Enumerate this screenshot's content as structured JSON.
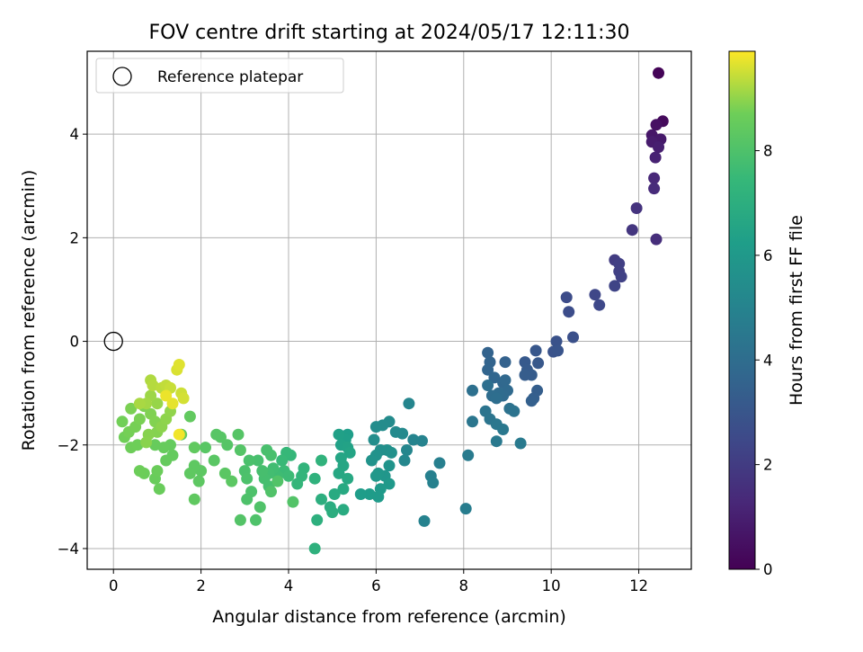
{
  "chart_data": {
    "type": "scatter",
    "title": "FOV centre drift starting at 2024/05/17 12:11:30",
    "xlabel": "Angular distance from reference (arcmin)",
    "ylabel": "Rotation from reference (arcmin)",
    "xlim": [
      -0.6,
      13.2
    ],
    "ylim": [
      -4.4,
      5.6
    ],
    "xticks": [
      0,
      2,
      4,
      6,
      8,
      10,
      12
    ],
    "yticks": [
      -4,
      -2,
      0,
      2,
      4
    ],
    "grid": true,
    "legend": {
      "position": "top-left",
      "entries": [
        "Reference platepar"
      ]
    },
    "reference_point": {
      "x": 0,
      "y": 0
    },
    "colorbar": {
      "label": "Hours from first FF file",
      "colormap": "viridis",
      "range": [
        0,
        9.9
      ],
      "ticks": [
        0,
        2,
        4,
        6,
        8
      ]
    },
    "series": [
      {
        "color_value": "hours",
        "points": [
          [
            12.45,
            5.18,
            0.1
          ],
          [
            12.55,
            4.25,
            0.3
          ],
          [
            12.4,
            4.18,
            0.5
          ],
          [
            12.3,
            3.98,
            0.7
          ],
          [
            12.5,
            3.9,
            0.8
          ],
          [
            12.3,
            3.85,
            0.9
          ],
          [
            12.45,
            3.75,
            1.0
          ],
          [
            12.38,
            3.55,
            1.1
          ],
          [
            12.35,
            3.15,
            1.3
          ],
          [
            12.35,
            2.95,
            1.4
          ],
          [
            12.4,
            1.97,
            1.5
          ],
          [
            11.95,
            2.57,
            1.7
          ],
          [
            11.85,
            2.15,
            1.8
          ],
          [
            11.45,
            1.57,
            2.0
          ],
          [
            11.55,
            1.5,
            2.1
          ],
          [
            11.55,
            1.35,
            2.15
          ],
          [
            11.6,
            1.25,
            2.2
          ],
          [
            11.45,
            1.07,
            2.3
          ],
          [
            11.0,
            0.9,
            2.4
          ],
          [
            11.1,
            0.7,
            2.45
          ],
          [
            10.35,
            0.85,
            2.6
          ],
          [
            10.4,
            0.57,
            2.65
          ],
          [
            10.5,
            0.08,
            2.75
          ],
          [
            10.12,
            0.0,
            2.85
          ],
          [
            10.05,
            -0.2,
            2.9
          ],
          [
            10.15,
            -0.18,
            2.95
          ],
          [
            9.65,
            -0.18,
            3.05
          ],
          [
            9.7,
            -0.42,
            3.1
          ],
          [
            9.4,
            -0.4,
            3.15
          ],
          [
            9.45,
            -0.55,
            3.2
          ],
          [
            9.55,
            -0.65,
            3.25
          ],
          [
            9.4,
            -0.65,
            3.3
          ],
          [
            9.68,
            -0.95,
            3.35
          ],
          [
            9.6,
            -1.1,
            3.4
          ],
          [
            9.55,
            -1.15,
            3.45
          ],
          [
            8.95,
            -0.4,
            3.5
          ],
          [
            8.55,
            -0.22,
            3.55
          ],
          [
            8.6,
            -0.4,
            3.6
          ],
          [
            8.55,
            -0.55,
            3.65
          ],
          [
            8.7,
            -0.7,
            3.7
          ],
          [
            8.9,
            -0.8,
            3.75
          ],
          [
            8.95,
            -0.75,
            3.8
          ],
          [
            9.0,
            -0.95,
            3.85
          ],
          [
            8.9,
            -1.05,
            3.9
          ],
          [
            8.8,
            -1.0,
            3.95
          ],
          [
            8.65,
            -1.05,
            4.0
          ],
          [
            8.75,
            -1.1,
            4.05
          ],
          [
            8.55,
            -0.85,
            4.1
          ],
          [
            8.2,
            -0.95,
            4.15
          ],
          [
            9.05,
            -1.3,
            4.2
          ],
          [
            9.15,
            -1.35,
            4.25
          ],
          [
            8.5,
            -1.35,
            4.3
          ],
          [
            8.6,
            -1.5,
            4.35
          ],
          [
            8.2,
            -1.55,
            4.4
          ],
          [
            8.75,
            -1.6,
            4.45
          ],
          [
            8.9,
            -1.7,
            4.5
          ],
          [
            8.75,
            -1.93,
            4.55
          ],
          [
            9.3,
            -1.97,
            4.6
          ],
          [
            8.1,
            -2.2,
            4.65
          ],
          [
            8.05,
            -3.23,
            4.7
          ],
          [
            7.45,
            -2.35,
            4.8
          ],
          [
            7.25,
            -2.6,
            4.85
          ],
          [
            7.3,
            -2.73,
            4.9
          ],
          [
            7.1,
            -3.47,
            4.95
          ],
          [
            7.05,
            -1.92,
            5.0
          ],
          [
            6.85,
            -1.9,
            5.05
          ],
          [
            6.75,
            -1.2,
            5.1
          ],
          [
            6.7,
            -2.1,
            5.15
          ],
          [
            6.65,
            -2.3,
            5.2
          ],
          [
            6.6,
            -1.78,
            5.25
          ],
          [
            6.45,
            -1.75,
            5.3
          ],
          [
            6.3,
            -1.55,
            5.35
          ],
          [
            6.15,
            -1.62,
            5.4
          ],
          [
            6.0,
            -1.65,
            5.45
          ],
          [
            5.95,
            -1.9,
            5.5
          ],
          [
            6.1,
            -2.1,
            5.55
          ],
          [
            6.25,
            -2.1,
            5.6
          ],
          [
            6.35,
            -2.15,
            5.65
          ],
          [
            6.0,
            -2.2,
            5.7
          ],
          [
            5.9,
            -2.3,
            5.75
          ],
          [
            6.3,
            -2.4,
            5.8
          ],
          [
            6.2,
            -2.6,
            5.85
          ],
          [
            6.05,
            -2.55,
            5.9
          ],
          [
            6.0,
            -2.6,
            5.95
          ],
          [
            6.3,
            -2.75,
            6.0
          ],
          [
            6.1,
            -2.85,
            6.05
          ],
          [
            6.05,
            -3.0,
            6.1
          ],
          [
            5.85,
            -2.95,
            6.15
          ],
          [
            5.65,
            -2.95,
            6.2
          ],
          [
            5.35,
            -1.8,
            6.25
          ],
          [
            5.3,
            -1.9,
            6.3
          ],
          [
            5.15,
            -1.8,
            6.35
          ],
          [
            5.2,
            -2.0,
            6.4
          ],
          [
            5.35,
            -2.05,
            6.45
          ],
          [
            5.4,
            -2.15,
            6.5
          ],
          [
            5.2,
            -2.25,
            6.55
          ],
          [
            5.25,
            -2.4,
            6.6
          ],
          [
            5.15,
            -2.55,
            6.65
          ],
          [
            5.35,
            -2.65,
            6.7
          ],
          [
            5.25,
            -2.85,
            6.75
          ],
          [
            5.05,
            -2.95,
            6.8
          ],
          [
            5.25,
            -3.25,
            6.85
          ],
          [
            4.95,
            -3.2,
            6.9
          ],
          [
            5.0,
            -3.3,
            6.95
          ],
          [
            4.75,
            -3.05,
            7.0
          ],
          [
            4.65,
            -3.45,
            7.05
          ],
          [
            4.6,
            -4.0,
            7.1
          ],
          [
            4.6,
            -2.65,
            7.15
          ],
          [
            4.75,
            -2.3,
            7.2
          ],
          [
            4.35,
            -2.45,
            7.25
          ],
          [
            4.3,
            -2.6,
            7.3
          ],
          [
            4.2,
            -2.75,
            7.35
          ],
          [
            4.05,
            -2.2,
            7.4
          ],
          [
            3.95,
            -2.15,
            7.45
          ],
          [
            3.85,
            -2.3,
            7.5
          ],
          [
            3.9,
            -2.5,
            7.55
          ],
          [
            4.0,
            -2.6,
            7.6
          ],
          [
            3.75,
            -2.6,
            7.65
          ],
          [
            3.65,
            -2.45,
            7.7
          ],
          [
            3.55,
            -2.55,
            7.75
          ],
          [
            3.55,
            -2.8,
            7.8
          ],
          [
            3.45,
            -2.65,
            7.82
          ],
          [
            3.4,
            -2.5,
            7.84
          ],
          [
            3.3,
            -2.3,
            7.86
          ],
          [
            3.5,
            -2.1,
            7.88
          ],
          [
            3.6,
            -2.2,
            7.9
          ],
          [
            3.1,
            -2.3,
            7.92
          ],
          [
            3.0,
            -2.5,
            7.94
          ],
          [
            3.05,
            -2.65,
            7.96
          ],
          [
            3.15,
            -2.9,
            7.98
          ],
          [
            3.05,
            -3.05,
            8.0
          ],
          [
            3.25,
            -3.45,
            8.02
          ],
          [
            3.35,
            -3.2,
            8.04
          ],
          [
            3.6,
            -2.9,
            8.06
          ],
          [
            3.75,
            -2.7,
            8.08
          ],
          [
            4.1,
            -3.1,
            8.1
          ],
          [
            2.9,
            -3.45,
            8.12
          ],
          [
            2.9,
            -2.1,
            8.14
          ],
          [
            2.85,
            -1.8,
            8.16
          ],
          [
            2.6,
            -2.0,
            8.18
          ],
          [
            2.45,
            -1.85,
            8.2
          ],
          [
            2.35,
            -1.8,
            8.22
          ],
          [
            2.1,
            -2.05,
            8.24
          ],
          [
            2.3,
            -2.3,
            8.26
          ],
          [
            2.55,
            -2.55,
            8.28
          ],
          [
            2.7,
            -2.7,
            8.3
          ],
          [
            2.0,
            -2.5,
            8.32
          ],
          [
            1.95,
            -2.7,
            8.34
          ],
          [
            1.85,
            -2.4,
            8.36
          ],
          [
            1.75,
            -2.55,
            8.38
          ],
          [
            1.85,
            -3.05,
            8.4
          ],
          [
            1.85,
            -2.05,
            8.42
          ],
          [
            1.75,
            -1.45,
            8.44
          ],
          [
            1.55,
            -1.8,
            8.46
          ],
          [
            1.35,
            -2.2,
            8.48
          ],
          [
            1.2,
            -2.3,
            8.5
          ],
          [
            1.3,
            -2.0,
            8.52
          ],
          [
            1.15,
            -2.05,
            8.54
          ],
          [
            0.95,
            -2.0,
            8.56
          ],
          [
            0.95,
            -2.65,
            8.58
          ],
          [
            1.05,
            -2.85,
            8.6
          ],
          [
            1.0,
            -2.5,
            8.62
          ],
          [
            0.7,
            -2.55,
            8.64
          ],
          [
            0.6,
            -2.5,
            8.66
          ],
          [
            0.4,
            -2.05,
            8.68
          ],
          [
            0.55,
            -2.0,
            8.7
          ],
          [
            0.25,
            -1.85,
            8.72
          ],
          [
            0.2,
            -1.55,
            8.74
          ],
          [
            0.35,
            -1.75,
            8.76
          ],
          [
            0.5,
            -1.65,
            8.78
          ],
          [
            0.6,
            -1.5,
            8.8
          ],
          [
            0.4,
            -1.3,
            8.82
          ],
          [
            0.7,
            -1.25,
            8.84
          ],
          [
            0.85,
            -1.4,
            8.86
          ],
          [
            0.95,
            -1.55,
            8.88
          ],
          [
            1.0,
            -1.75,
            8.9
          ],
          [
            0.8,
            -1.8,
            8.92
          ],
          [
            0.75,
            -1.95,
            8.94
          ],
          [
            1.1,
            -1.65,
            8.96
          ],
          [
            1.2,
            -1.5,
            8.98
          ],
          [
            1.3,
            -1.35,
            9.0
          ],
          [
            1.0,
            -1.2,
            9.05
          ],
          [
            0.85,
            -1.05,
            9.1
          ],
          [
            0.75,
            -1.2,
            9.15
          ],
          [
            0.6,
            -1.2,
            9.2
          ],
          [
            0.85,
            -0.75,
            9.25
          ],
          [
            0.9,
            -0.85,
            9.3
          ],
          [
            1.1,
            -0.9,
            9.35
          ],
          [
            1.2,
            -0.85,
            9.4
          ],
          [
            1.3,
            -0.9,
            9.45
          ],
          [
            1.55,
            -1.0,
            9.5
          ],
          [
            1.6,
            -1.1,
            9.55
          ],
          [
            1.45,
            -0.55,
            9.6
          ],
          [
            1.5,
            -0.45,
            9.65
          ],
          [
            1.35,
            -1.2,
            9.7
          ],
          [
            1.2,
            -1.05,
            9.75
          ],
          [
            1.5,
            -1.8,
            9.8
          ]
        ]
      }
    ]
  }
}
